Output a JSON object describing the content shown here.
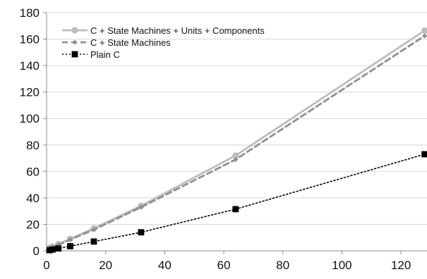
{
  "chart_data": {
    "type": "line",
    "title": "",
    "xlabel": "",
    "ylabel": "",
    "xlim": [
      0,
      130
    ],
    "ylim": [
      0,
      180
    ],
    "x_ticks": [
      0,
      20,
      40,
      60,
      80,
      100,
      120
    ],
    "y_ticks": [
      0,
      20,
      40,
      60,
      80,
      100,
      120,
      140,
      160,
      180
    ],
    "x_tick_labels": [
      "0",
      "20",
      "40",
      "60",
      "80",
      "100",
      "120"
    ],
    "y_tick_labels": [
      "0",
      "20",
      "40",
      "60",
      "80",
      "100",
      "120",
      "140",
      "160",
      "180"
    ],
    "grid": "horizontal",
    "legend_position": "top-left",
    "series": [
      {
        "name": "C + State Machines + Units + Components",
        "color": "#bdbdbd",
        "line_style": "solid",
        "marker": "circle",
        "x": [
          1,
          2,
          4,
          8,
          16,
          32,
          64,
          128
        ],
        "y": [
          2.5,
          3.2,
          5.0,
          9.0,
          17.0,
          34.0,
          72.0,
          166.5
        ]
      },
      {
        "name": "C + State Machines",
        "color": "#909090",
        "line_style": "dashed",
        "marker": "diamond",
        "x": [
          1,
          2,
          4,
          8,
          16,
          32,
          64,
          128
        ],
        "y": [
          2.0,
          2.8,
          4.5,
          8.5,
          16.0,
          33.0,
          69.0,
          162.5
        ]
      },
      {
        "name": "Plain C",
        "color": "#000000",
        "line_style": "dotted",
        "marker": "square",
        "x": [
          1,
          2,
          4,
          8,
          16,
          32,
          64,
          128
        ],
        "y": [
          0.5,
          1.0,
          1.8,
          3.5,
          7.0,
          14.0,
          31.5,
          73.0
        ]
      }
    ]
  }
}
